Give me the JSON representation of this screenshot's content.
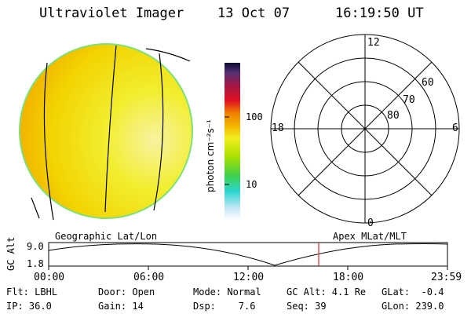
{
  "header": {
    "title": "Ultraviolet Imager",
    "date": "13 Oct 07",
    "time": "16:19:50 UT"
  },
  "colorbar": {
    "unit_label": "photon cm⁻²s⁻¹",
    "tick_100": "100",
    "tick_10": "10"
  },
  "polar": {
    "mlt_top": "12",
    "mlt_left": "18",
    "mlt_right": "6",
    "mlt_bottom": "0",
    "lat_60": "60",
    "lat_70": "70",
    "lat_80": "80"
  },
  "altitude_panel": {
    "left_title": "Geographic Lat/Lon",
    "right_title": "Apex MLat/MLT",
    "axis_label": "GC Alt",
    "ytick_top": "9.0",
    "ytick_bottom": "1.8",
    "xticks": [
      "00:00",
      "06:00",
      "12:00",
      "18:00",
      "23:59"
    ],
    "marker_time": "16:19:50"
  },
  "info": {
    "filter": "Flt: LBHL",
    "door": "Door: Open",
    "mode": "Mode: Normal",
    "gc_alt": "GC Alt: 4.1 Re",
    "glat": "GLat:  -0.4",
    "ip": "IP: 36.0",
    "gain": "Gain: 14",
    "dsp": "Dsp:    7.6",
    "seq": "Seq: 39",
    "glon": "GLon: 239.0"
  },
  "colors": {
    "disk_fill": "#f2ec18",
    "disk_left": "#f5b000",
    "disk_edge": "#8fe86a",
    "marker": "#d4302a"
  }
}
